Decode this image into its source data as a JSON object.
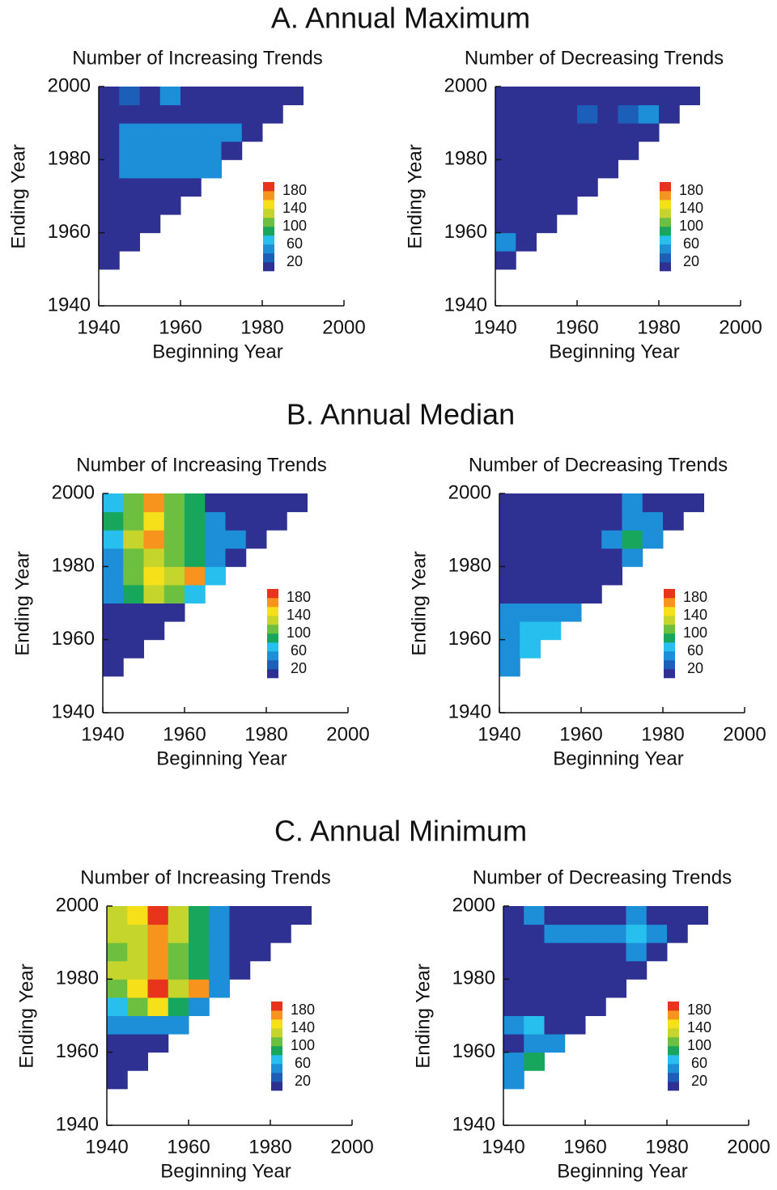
{
  "sections": [
    "A. Annual Maximum",
    "B. Annual Median",
    "C. Annual Minimum"
  ],
  "chart_data": [
    {
      "type": "heatmap",
      "title": "Number of Increasing Trends",
      "xlabel": "Beginning Year",
      "ylabel": "Ending Year",
      "x": [
        1940,
        1945,
        1950,
        1955,
        1960,
        1965,
        1970,
        1975,
        1980,
        1985
      ],
      "y": [
        1950,
        1955,
        1960,
        1965,
        1970,
        1975,
        1980,
        1985,
        1990,
        1995
      ],
      "values": [
        [
          10,
          null,
          null,
          null,
          null,
          null,
          null,
          null,
          null,
          null
        ],
        [
          10,
          10,
          null,
          null,
          null,
          null,
          null,
          null,
          null,
          null
        ],
        [
          10,
          10,
          10,
          null,
          null,
          null,
          null,
          null,
          null,
          null
        ],
        [
          10,
          10,
          10,
          10,
          null,
          null,
          null,
          null,
          null,
          null
        ],
        [
          10,
          10,
          10,
          10,
          10,
          null,
          null,
          null,
          null,
          null
        ],
        [
          10,
          40,
          40,
          40,
          40,
          40,
          null,
          null,
          null,
          null
        ],
        [
          10,
          40,
          40,
          50,
          40,
          40,
          10,
          null,
          null,
          null
        ],
        [
          10,
          40,
          40,
          50,
          40,
          40,
          40,
          10,
          null,
          null
        ],
        [
          10,
          10,
          10,
          10,
          10,
          10,
          10,
          10,
          10,
          null
        ],
        [
          10,
          30,
          10,
          50,
          10,
          10,
          10,
          10,
          10,
          10
        ]
      ],
      "xlim": [
        1940,
        2000
      ],
      "ylim": [
        1940,
        2000
      ],
      "xticks": [
        1940,
        1960,
        1980,
        2000
      ],
      "yticks": [
        1940,
        1960,
        1980,
        2000
      ],
      "clim": [
        0,
        200
      ],
      "cticks": [
        20,
        60,
        100,
        140,
        180
      ],
      "colors": [
        "#2e3192",
        "#1c5fb8",
        "#1c8fd8",
        "#27c0ee",
        "#17a65b",
        "#6cbf3f",
        "#c6d52c",
        "#f5e01a",
        "#f7941d",
        "#e8341c"
      ]
    },
    {
      "type": "heatmap",
      "title": "Number of Decreasing Trends",
      "xlabel": "Beginning Year",
      "ylabel": "Ending Year",
      "x": [
        1940,
        1945,
        1950,
        1955,
        1960,
        1965,
        1970,
        1975,
        1980,
        1985
      ],
      "y": [
        1950,
        1955,
        1960,
        1965,
        1970,
        1975,
        1980,
        1985,
        1990,
        1995
      ],
      "values": [
        [
          10,
          null,
          null,
          null,
          null,
          null,
          null,
          null,
          null,
          null
        ],
        [
          40,
          10,
          null,
          null,
          null,
          null,
          null,
          null,
          null,
          null
        ],
        [
          10,
          10,
          10,
          null,
          null,
          null,
          null,
          null,
          null,
          null
        ],
        [
          10,
          10,
          10,
          10,
          null,
          null,
          null,
          null,
          null,
          null
        ],
        [
          10,
          10,
          10,
          10,
          10,
          null,
          null,
          null,
          null,
          null
        ],
        [
          10,
          10,
          10,
          10,
          10,
          10,
          null,
          null,
          null,
          null
        ],
        [
          10,
          10,
          10,
          10,
          10,
          10,
          10,
          null,
          null,
          null
        ],
        [
          10,
          10,
          10,
          10,
          10,
          10,
          10,
          10,
          null,
          null
        ],
        [
          10,
          10,
          10,
          10,
          30,
          10,
          30,
          40,
          10,
          null
        ],
        [
          10,
          10,
          10,
          10,
          10,
          10,
          10,
          10,
          10,
          10
        ]
      ],
      "xlim": [
        1940,
        2000
      ],
      "ylim": [
        1940,
        2000
      ],
      "xticks": [
        1940,
        1960,
        1980,
        2000
      ],
      "yticks": [
        1940,
        1960,
        1980,
        2000
      ],
      "clim": [
        0,
        200
      ],
      "cticks": [
        20,
        60,
        100,
        140,
        180
      ],
      "colors": [
        "#2e3192",
        "#1c5fb8",
        "#1c8fd8",
        "#27c0ee",
        "#17a65b",
        "#6cbf3f",
        "#c6d52c",
        "#f5e01a",
        "#f7941d",
        "#e8341c"
      ]
    },
    {
      "type": "heatmap",
      "title": "Number of Increasing Trends",
      "xlabel": "Beginning Year",
      "ylabel": "Ending Year",
      "x": [
        1940,
        1945,
        1950,
        1955,
        1960,
        1965,
        1970,
        1975,
        1980,
        1985
      ],
      "y": [
        1950,
        1955,
        1960,
        1965,
        1970,
        1975,
        1980,
        1985,
        1990,
        1995
      ],
      "values": [
        [
          10,
          null,
          null,
          null,
          null,
          null,
          null,
          null,
          null,
          null
        ],
        [
          10,
          10,
          null,
          null,
          null,
          null,
          null,
          null,
          null,
          null
        ],
        [
          10,
          10,
          10,
          null,
          null,
          null,
          null,
          null,
          null,
          null
        ],
        [
          10,
          10,
          10,
          10,
          null,
          null,
          null,
          null,
          null,
          null
        ],
        [
          40,
          90,
          120,
          100,
          60,
          null,
          null,
          null,
          null,
          null
        ],
        [
          50,
          110,
          150,
          130,
          170,
          60,
          null,
          null,
          null,
          null
        ],
        [
          40,
          100,
          130,
          100,
          90,
          40,
          10,
          null,
          null,
          null
        ],
        [
          70,
          120,
          170,
          110,
          90,
          40,
          40,
          10,
          null,
          null
        ],
        [
          80,
          110,
          140,
          100,
          80,
          40,
          10,
          10,
          10,
          null
        ],
        [
          60,
          100,
          170,
          110,
          90,
          10,
          10,
          10,
          10,
          10
        ]
      ],
      "xlim": [
        1940,
        2000
      ],
      "ylim": [
        1940,
        2000
      ],
      "xticks": [
        1940,
        1960,
        1980,
        2000
      ],
      "yticks": [
        1940,
        1960,
        1980,
        2000
      ],
      "clim": [
        0,
        200
      ],
      "cticks": [
        20,
        60,
        100,
        140,
        180
      ],
      "colors": [
        "#2e3192",
        "#1c5fb8",
        "#1c8fd8",
        "#27c0ee",
        "#17a65b",
        "#6cbf3f",
        "#c6d52c",
        "#f5e01a",
        "#f7941d",
        "#e8341c"
      ]
    },
    {
      "type": "heatmap",
      "title": "Number of Decreasing Trends",
      "xlabel": "Beginning Year",
      "ylabel": "Ending Year",
      "x": [
        1940,
        1945,
        1950,
        1955,
        1960,
        1965,
        1970,
        1975,
        1980,
        1985
      ],
      "y": [
        1950,
        1955,
        1960,
        1965,
        1970,
        1975,
        1980,
        1985,
        1990,
        1995
      ],
      "values": [
        [
          50,
          null,
          null,
          null,
          null,
          null,
          null,
          null,
          null,
          null
        ],
        [
          50,
          60,
          null,
          null,
          null,
          null,
          null,
          null,
          null,
          null
        ],
        [
          50,
          70,
          60,
          null,
          null,
          null,
          null,
          null,
          null,
          null
        ],
        [
          40,
          50,
          40,
          50,
          null,
          null,
          null,
          null,
          null,
          null
        ],
        [
          10,
          10,
          10,
          10,
          10,
          null,
          null,
          null,
          null,
          null
        ],
        [
          10,
          10,
          10,
          10,
          10,
          10,
          null,
          null,
          null,
          null
        ],
        [
          10,
          10,
          10,
          10,
          10,
          10,
          40,
          null,
          null,
          null
        ],
        [
          10,
          10,
          10,
          10,
          10,
          40,
          80,
          40,
          null,
          null
        ],
        [
          10,
          10,
          10,
          10,
          10,
          10,
          40,
          40,
          10,
          null
        ],
        [
          10,
          10,
          10,
          10,
          10,
          10,
          50,
          10,
          10,
          10
        ]
      ],
      "xlim": [
        1940,
        2000
      ],
      "ylim": [
        1940,
        2000
      ],
      "xticks": [
        1940,
        1960,
        1980,
        2000
      ],
      "yticks": [
        1940,
        1960,
        1980,
        2000
      ],
      "clim": [
        0,
        200
      ],
      "cticks": [
        20,
        60,
        100,
        140,
        180
      ],
      "colors": [
        "#2e3192",
        "#1c5fb8",
        "#1c8fd8",
        "#27c0ee",
        "#17a65b",
        "#6cbf3f",
        "#c6d52c",
        "#f5e01a",
        "#f7941d",
        "#e8341c"
      ]
    },
    {
      "type": "heatmap",
      "title": "Number of Increasing Trends",
      "xlabel": "Beginning Year",
      "ylabel": "Ending Year",
      "x": [
        1940,
        1945,
        1950,
        1955,
        1960,
        1965,
        1970,
        1975,
        1980,
        1985
      ],
      "y": [
        1950,
        1955,
        1960,
        1965,
        1970,
        1975,
        1980,
        1985,
        1990,
        1995
      ],
      "values": [
        [
          10,
          null,
          null,
          null,
          null,
          null,
          null,
          null,
          null,
          null
        ],
        [
          10,
          10,
          null,
          null,
          null,
          null,
          null,
          null,
          null,
          null
        ],
        [
          10,
          10,
          10,
          null,
          null,
          null,
          null,
          null,
          null,
          null
        ],
        [
          40,
          40,
          40,
          40,
          null,
          null,
          null,
          null,
          null,
          null
        ],
        [
          60,
          100,
          140,
          90,
          40,
          null,
          null,
          null,
          null,
          null
        ],
        [
          100,
          140,
          180,
          120,
          160,
          40,
          null,
          null,
          null,
          null
        ],
        [
          120,
          130,
          170,
          110,
          80,
          40,
          10,
          null,
          null,
          null
        ],
        [
          110,
          120,
          160,
          110,
          80,
          40,
          10,
          10,
          null,
          null
        ],
        [
          120,
          130,
          160,
          120,
          80,
          40,
          10,
          10,
          10,
          null
        ],
        [
          130,
          140,
          180,
          130,
          90,
          50,
          10,
          10,
          10,
          10
        ]
      ],
      "xlim": [
        1940,
        2000
      ],
      "ylim": [
        1940,
        2000
      ],
      "xticks": [
        1940,
        1960,
        1980,
        2000
      ],
      "yticks": [
        1940,
        1960,
        1980,
        2000
      ],
      "clim": [
        0,
        200
      ],
      "cticks": [
        20,
        60,
        100,
        140,
        180
      ],
      "colors": [
        "#2e3192",
        "#1c5fb8",
        "#1c8fd8",
        "#27c0ee",
        "#17a65b",
        "#6cbf3f",
        "#c6d52c",
        "#f5e01a",
        "#f7941d",
        "#e8341c"
      ]
    },
    {
      "type": "heatmap",
      "title": "Number of Decreasing Trends",
      "xlabel": "Beginning Year",
      "ylabel": "Ending Year",
      "x": [
        1940,
        1945,
        1950,
        1955,
        1960,
        1965,
        1970,
        1975,
        1980,
        1985
      ],
      "y": [
        1950,
        1955,
        1960,
        1965,
        1970,
        1975,
        1980,
        1985,
        1990,
        1995
      ],
      "values": [
        [
          50,
          null,
          null,
          null,
          null,
          null,
          null,
          null,
          null,
          null
        ],
        [
          50,
          80,
          null,
          null,
          null,
          null,
          null,
          null,
          null,
          null
        ],
        [
          10,
          50,
          50,
          null,
          null,
          null,
          null,
          null,
          null,
          null
        ],
        [
          50,
          60,
          10,
          10,
          null,
          null,
          null,
          null,
          null,
          null
        ],
        [
          10,
          10,
          10,
          10,
          10,
          null,
          null,
          null,
          null,
          null
        ],
        [
          10,
          10,
          10,
          10,
          10,
          10,
          null,
          null,
          null,
          null
        ],
        [
          10,
          10,
          10,
          10,
          10,
          10,
          10,
          null,
          null,
          null
        ],
        [
          10,
          10,
          10,
          10,
          10,
          10,
          50,
          10,
          null,
          null
        ],
        [
          10,
          10,
          40,
          40,
          50,
          50,
          60,
          40,
          10,
          null
        ],
        [
          10,
          50,
          10,
          10,
          10,
          10,
          50,
          10,
          10,
          10
        ]
      ],
      "xlim": [
        1940,
        2000
      ],
      "ylim": [
        1940,
        2000
      ],
      "xticks": [
        1940,
        1960,
        1980,
        2000
      ],
      "yticks": [
        1940,
        1960,
        1980,
        2000
      ],
      "clim": [
        0,
        200
      ],
      "cticks": [
        20,
        60,
        100,
        140,
        180
      ],
      "colors": [
        "#2e3192",
        "#1c5fb8",
        "#1c8fd8",
        "#27c0ee",
        "#17a65b",
        "#6cbf3f",
        "#c6d52c",
        "#f5e01a",
        "#f7941d",
        "#e8341c"
      ]
    }
  ]
}
